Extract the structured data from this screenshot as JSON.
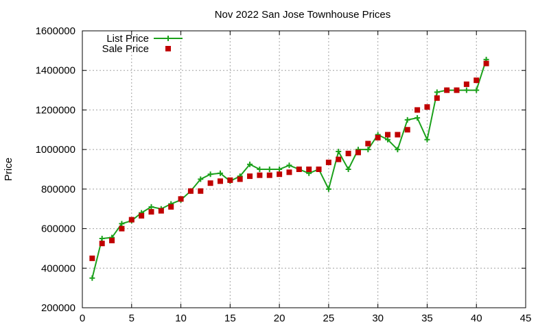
{
  "chart_data": {
    "type": "line",
    "title": "Nov 2022 San Jose Townhouse Prices",
    "xlabel": "",
    "ylabel": "Price",
    "xlim": [
      0,
      45
    ],
    "ylim": [
      200000,
      1600000
    ],
    "x_ticks": [
      0,
      5,
      10,
      15,
      20,
      25,
      30,
      35,
      40,
      45
    ],
    "y_ticks": [
      200000,
      400000,
      600000,
      800000,
      1000000,
      1200000,
      1400000,
      1600000
    ],
    "grid": true,
    "legend_position": "top-left",
    "series": [
      {
        "name": "List Price",
        "style": "line-with-plus-markers",
        "color": "#1aa01a",
        "x": [
          1,
          2,
          3,
          4,
          5,
          6,
          7,
          8,
          9,
          10,
          11,
          12,
          13,
          14,
          15,
          16,
          17,
          18,
          19,
          20,
          21,
          22,
          23,
          24,
          25,
          26,
          27,
          28,
          29,
          30,
          31,
          32,
          33,
          34,
          35,
          36,
          37,
          38,
          39,
          40,
          41
        ],
        "y": [
          350000,
          550000,
          555000,
          625000,
          640000,
          680000,
          710000,
          700000,
          725000,
          745000,
          790000,
          850000,
          875000,
          880000,
          840000,
          865000,
          925000,
          900000,
          900000,
          900000,
          920000,
          900000,
          880000,
          900000,
          800000,
          990000,
          900000,
          1000000,
          1000000,
          1075000,
          1050000,
          1000000,
          1150000,
          1160000,
          1050000,
          1290000,
          1300000,
          1300000,
          1300000,
          1300000,
          1455000
        ]
      },
      {
        "name": "Sale Price",
        "style": "square-markers",
        "color": "#c00000",
        "x": [
          1,
          2,
          3,
          4,
          5,
          6,
          7,
          8,
          9,
          10,
          11,
          12,
          13,
          14,
          15,
          16,
          17,
          18,
          19,
          20,
          21,
          22,
          23,
          24,
          25,
          26,
          27,
          28,
          29,
          30,
          31,
          32,
          33,
          34,
          35,
          36,
          37,
          38,
          39,
          40,
          41
        ],
        "y": [
          450000,
          525000,
          540000,
          600000,
          645000,
          665000,
          685000,
          690000,
          710000,
          750000,
          790000,
          790000,
          830000,
          840000,
          845000,
          850000,
          865000,
          870000,
          870000,
          875000,
          885000,
          900000,
          900000,
          900000,
          935000,
          950000,
          980000,
          985000,
          1030000,
          1060000,
          1075000,
          1075000,
          1100000,
          1200000,
          1215000,
          1260000,
          1300000,
          1300000,
          1330000,
          1350000,
          1435000
        ]
      }
    ]
  }
}
